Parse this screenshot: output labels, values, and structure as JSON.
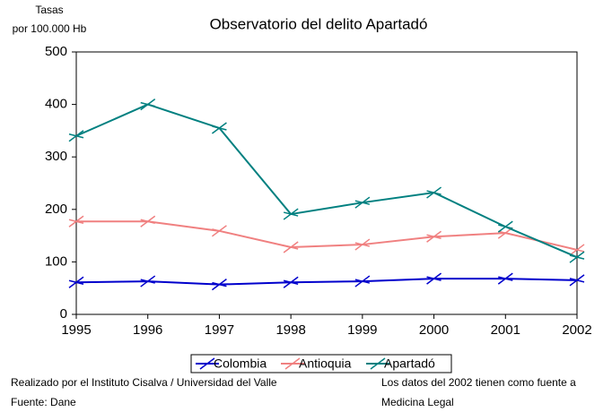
{
  "chart_data": {
    "type": "line",
    "title": "Observatorio del delito Apartadó",
    "y_label": [
      "Tasas",
      "por 100.000 Hb"
    ],
    "categories": [
      "1995",
      "1996",
      "1997",
      "1998",
      "1999",
      "2000",
      "2001",
      "2002"
    ],
    "series": [
      {
        "name": "Colombia",
        "color": "#0000cc",
        "values": [
          61,
          63,
          57,
          61,
          63,
          68,
          68,
          65
        ]
      },
      {
        "name": "Antioquia",
        "color": "#f08080",
        "values": [
          177,
          177,
          159,
          128,
          133,
          148,
          155,
          123
        ]
      },
      {
        "name": "Apartadó",
        "color": "#008080",
        "values": [
          340,
          400,
          355,
          191,
          213,
          232,
          167,
          109
        ]
      }
    ],
    "ylim": [
      0,
      500
    ],
    "yticks": [
      0,
      100,
      200,
      300,
      400,
      500
    ],
    "grid": false,
    "legend": "bottom",
    "notes": [
      "Realizado por el Instituto Cisalva / Universidad del Valle",
      "Fuente: Dane",
      "Los datos del 2002 tienen como fuente a",
      "Medicina Legal"
    ]
  }
}
